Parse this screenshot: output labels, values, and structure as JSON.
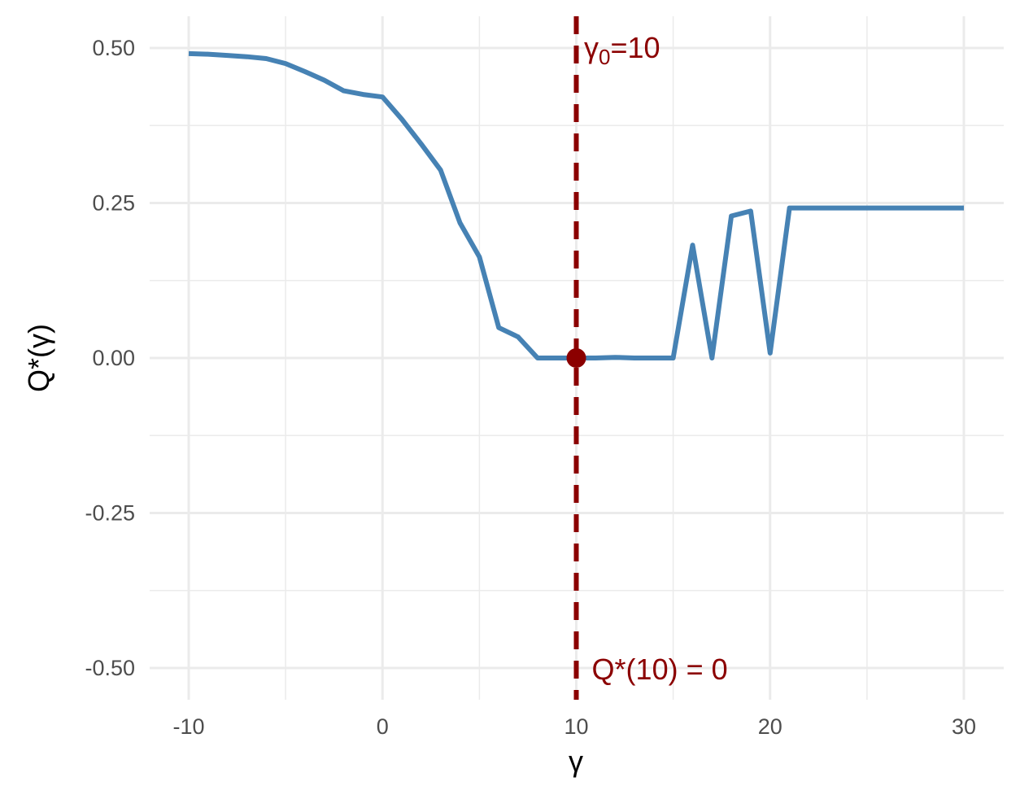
{
  "chart_data": {
    "type": "line",
    "title": "",
    "xlabel": "γ",
    "ylabel": "Q*(γ)",
    "xlim": [
      -12,
      32
    ],
    "ylim": [
      -0.55,
      0.55
    ],
    "x_ticks": [
      -10,
      0,
      10,
      20,
      30
    ],
    "x_tick_labels": [
      "-10",
      "0",
      "10",
      "20",
      "30"
    ],
    "y_ticks": [
      -0.5,
      -0.25,
      0,
      0.25,
      0.5
    ],
    "y_tick_labels": [
      "-0.50",
      "-0.25",
      "0.00",
      "0.25",
      "0.50"
    ],
    "grid": true,
    "series": [
      {
        "color": "#4682b4",
        "x": [
          -10,
          -9,
          -8,
          -7,
          -6,
          -5,
          -4,
          -3,
          -2,
          -1,
          0,
          1,
          2,
          3,
          4,
          5,
          6,
          7,
          8,
          9,
          10,
          11,
          12,
          13,
          14,
          15,
          16,
          17,
          18,
          19,
          20,
          21,
          22,
          23,
          24,
          25,
          26,
          27,
          28,
          29,
          30
        ],
        "y": [
          0.491,
          0.49,
          0.488,
          0.486,
          0.483,
          0.475,
          0.462,
          0.448,
          0.431,
          0.425,
          0.421,
          0.385,
          0.345,
          0.303,
          0.218,
          0.163,
          0.049,
          0.034,
          0.0,
          0.0,
          0.0,
          0.0,
          0.001,
          0.0,
          0.0,
          0.0,
          0.182,
          0.0,
          0.229,
          0.237,
          0.008,
          0.242,
          0.242,
          0.242,
          0.242,
          0.242,
          0.242,
          0.242,
          0.242,
          0.242,
          0.242
        ]
      }
    ],
    "vline": {
      "x": 10,
      "color": "#8b0000",
      "style": "dashed"
    },
    "point": {
      "x": 10,
      "y": 0,
      "color": "#8b0000"
    },
    "annotations": [
      {
        "text_main": "γ",
        "text_sub": "0",
        "text_rest": "=10",
        "x": 10.4,
        "y": 0.5
      },
      {
        "text": "Q*(10) = 0",
        "x": 10.8,
        "y": -0.5
      }
    ]
  }
}
